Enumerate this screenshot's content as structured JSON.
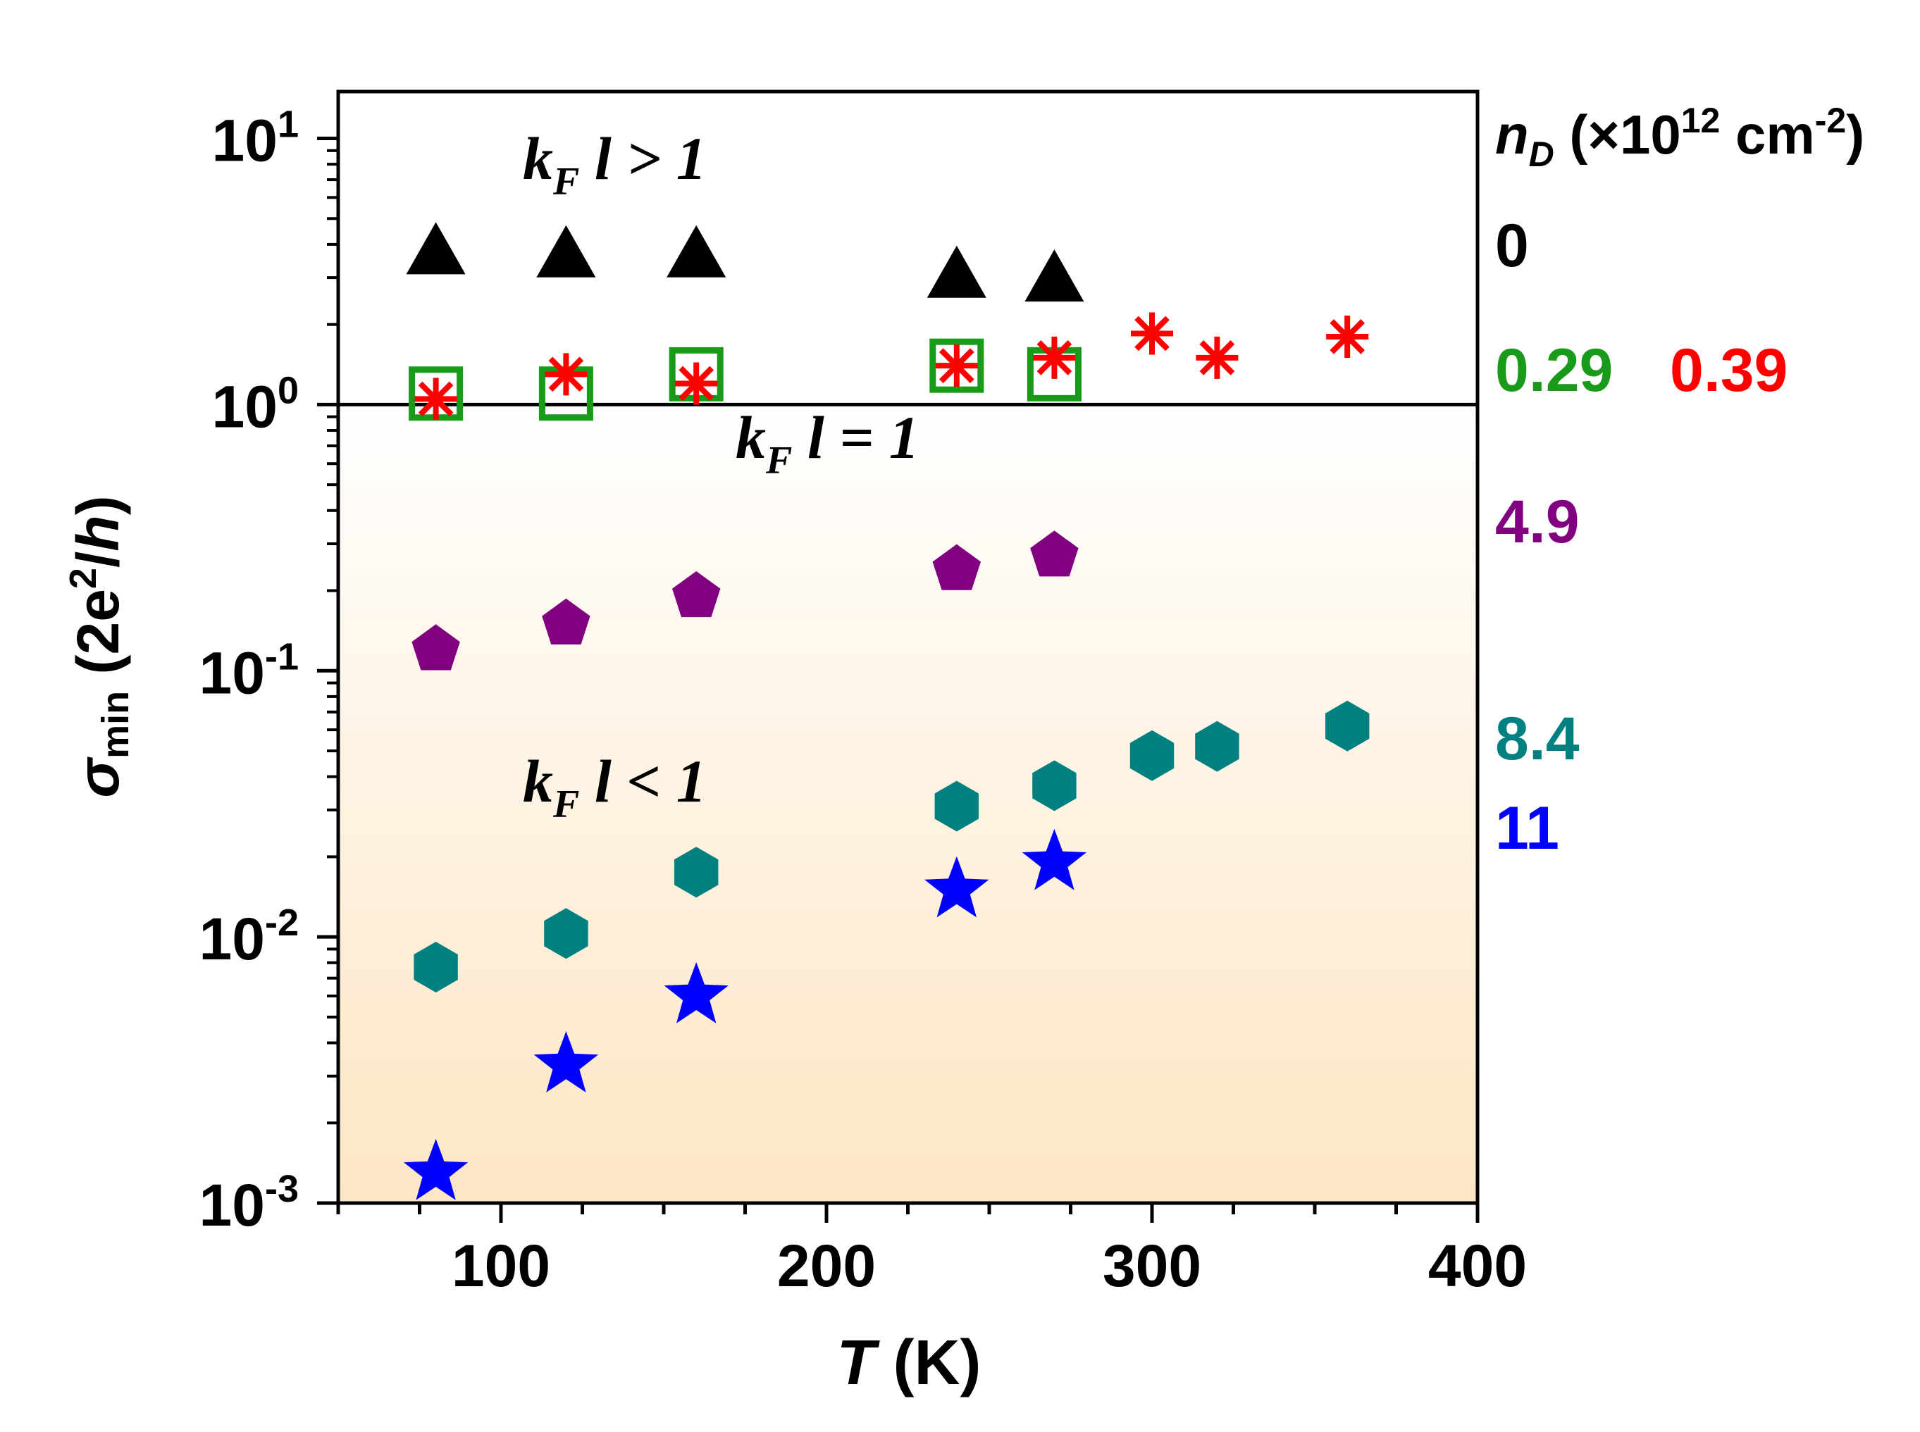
{
  "chart_data": {
    "type": "scatter",
    "title": "",
    "xlabel": {
      "var": "T",
      "unit": " (K)"
    },
    "ylabel": {
      "var": "σ",
      "sub": "min",
      "unit_pre": " (2e",
      "unit_sup": "2",
      "unit_post": "/",
      "unit_var": "h",
      "unit_close": ")"
    },
    "xlim": [
      50,
      400
    ],
    "ylim": [
      0.001,
      15
    ],
    "yscale": "log",
    "xticks": [
      100,
      200,
      300,
      400
    ],
    "xtick_labels": [
      "100",
      "200",
      "300",
      "400"
    ],
    "yticks": [
      {
        "value": 0.001,
        "base": "10",
        "exp": "-3"
      },
      {
        "value": 0.01,
        "base": "10",
        "exp": "-2"
      },
      {
        "value": 0.1,
        "base": "10",
        "exp": "-1"
      },
      {
        "value": 1,
        "base": "10",
        "exp": "0"
      },
      {
        "value": 10,
        "base": "10",
        "exp": "1"
      }
    ],
    "reference_line": {
      "y": 1
    },
    "region_labels": {
      "above": {
        "k": "k",
        "sub": "F",
        "l": " l",
        "rel": " > 1"
      },
      "line": {
        "k": "k",
        "sub": "F",
        "l": " l",
        "rel": " = 1"
      },
      "below": {
        "k": "k",
        "sub": "F",
        "l": " l",
        "rel": " < 1"
      }
    },
    "legend_title": {
      "var": "n",
      "sub": "D",
      "pre": " (×10",
      "sup1": "12",
      "mid": " cm",
      "sup2": "-2",
      "post": ")"
    },
    "series": [
      {
        "name": "0",
        "marker": "triangle",
        "color": "#000000",
        "x": [
          80,
          120,
          160,
          240,
          270
        ],
        "y": [
          3.8,
          3.7,
          3.7,
          3.1,
          3.0
        ]
      },
      {
        "name": "0.29",
        "marker": "square-open",
        "color": "#1a9a1a",
        "x": [
          80,
          120,
          160,
          240,
          270
        ],
        "y": [
          1.1,
          1.1,
          1.3,
          1.4,
          1.3
        ]
      },
      {
        "name": "0.39",
        "marker": "asterisk",
        "color": "#ff0000",
        "x": [
          80,
          120,
          160,
          240,
          270,
          300,
          320,
          360
        ],
        "y": [
          1.05,
          1.3,
          1.2,
          1.4,
          1.5,
          1.85,
          1.5,
          1.8
        ]
      },
      {
        "name": "4.9",
        "marker": "pentagon",
        "color": "#800080",
        "x": [
          80,
          120,
          160,
          240,
          270
        ],
        "y": [
          0.12,
          0.15,
          0.19,
          0.24,
          0.27
        ]
      },
      {
        "name": "8.4",
        "marker": "hexagon",
        "color": "#008080",
        "x": [
          80,
          120,
          160,
          240,
          270,
          300,
          320,
          360
        ],
        "y": [
          0.0077,
          0.0103,
          0.0175,
          0.031,
          0.037,
          0.048,
          0.052,
          0.062
        ]
      },
      {
        "name": "11",
        "marker": "star",
        "color": "#0000ff",
        "x": [
          80,
          120,
          160,
          240,
          270
        ],
        "y": [
          0.0013,
          0.0033,
          0.006,
          0.015,
          0.019
        ]
      }
    ],
    "series_label_rows": [
      [
        "0"
      ],
      [
        "0.29",
        "0.39"
      ],
      [
        "4.9"
      ],
      [
        "8.4"
      ],
      [
        "11"
      ]
    ]
  }
}
